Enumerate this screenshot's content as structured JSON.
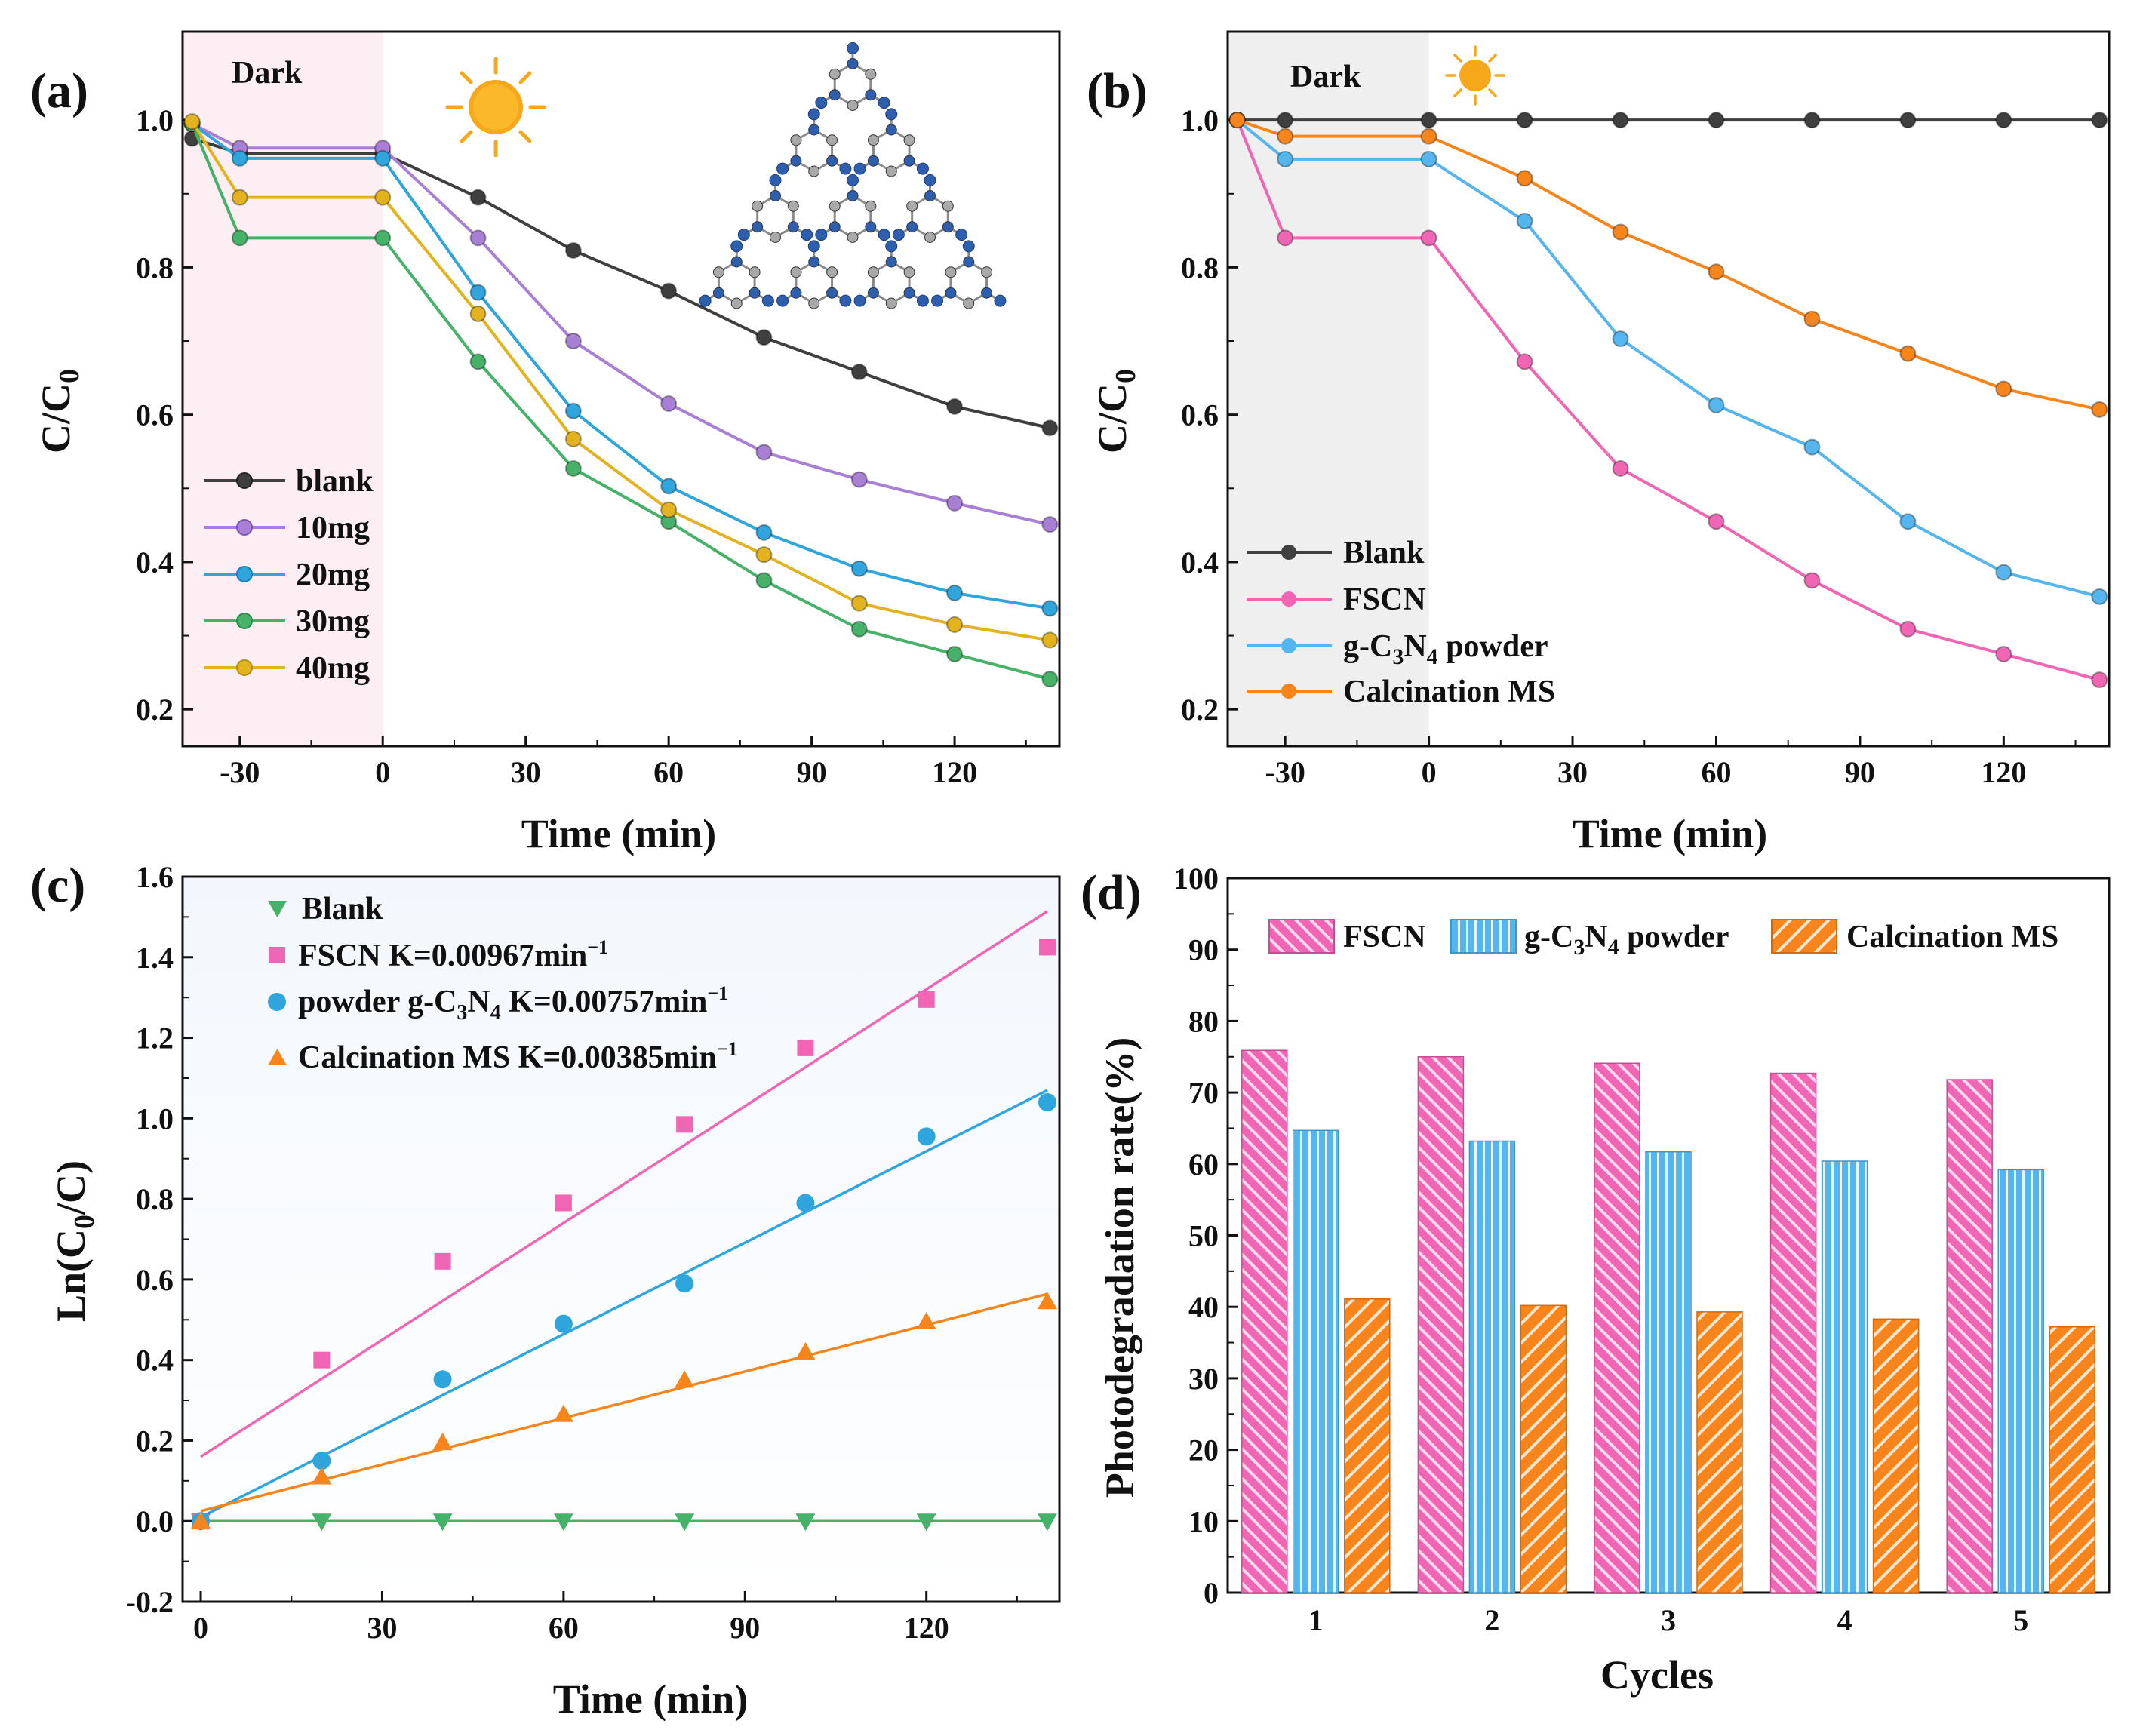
{
  "chart_data": [
    {
      "panel": "(a)",
      "type": "line",
      "xlabel": "Time (min)",
      "ylabel": "C/C0",
      "xlim": [
        -42,
        142
      ],
      "ylim": [
        0.15,
        1.12
      ],
      "xticks": [
        -30,
        0,
        30,
        60,
        90,
        120
      ],
      "yticks": [
        0.2,
        0.4,
        0.6,
        0.8,
        1.0
      ],
      "xtick_labels": [
        "-30",
        "0",
        "30",
        "60",
        "90",
        "120"
      ],
      "ytick_labels": [
        "0.2",
        "0.4",
        "0.6",
        "0.8",
        "1.0"
      ],
      "dark_region": {
        "from": -42,
        "to": 0,
        "label": "Dark",
        "color": "#fdeef3"
      },
      "x": [
        -40,
        -30,
        0,
        20,
        40,
        60,
        80,
        100,
        120,
        140
      ],
      "series": [
        {
          "name": "blank",
          "color": "#3f3f3f",
          "values": [
            0.975,
            0.955,
            0.955,
            0.895,
            0.823,
            0.768,
            0.705,
            0.658,
            0.611,
            0.582
          ]
        },
        {
          "name": "10mg",
          "color": "#a97fd6",
          "values": [
            0.995,
            0.962,
            0.962,
            0.84,
            0.7,
            0.615,
            0.549,
            0.512,
            0.48,
            0.451
          ]
        },
        {
          "name": "20mg",
          "color": "#2ea5dc",
          "values": [
            0.995,
            0.948,
            0.948,
            0.766,
            0.605,
            0.503,
            0.44,
            0.391,
            0.358,
            0.337
          ]
        },
        {
          "name": "30mg",
          "color": "#46b168",
          "values": [
            0.995,
            0.84,
            0.84,
            0.672,
            0.527,
            0.455,
            0.375,
            0.309,
            0.275,
            0.241
          ]
        },
        {
          "name": "40mg",
          "color": "#e2b31f",
          "values": [
            0.998,
            0.895,
            0.895,
            0.737,
            0.567,
            0.471,
            0.41,
            0.344,
            0.315,
            0.294
          ]
        }
      ],
      "legend": "bottom-left"
    },
    {
      "panel": "(b)",
      "type": "line",
      "xlabel": "Time (min)",
      "ylabel": "C/C0",
      "xlim": [
        -42,
        142
      ],
      "ylim": [
        0.15,
        1.12
      ],
      "xticks": [
        -30,
        0,
        30,
        60,
        90,
        120
      ],
      "yticks": [
        0.2,
        0.4,
        0.6,
        0.8,
        1.0
      ],
      "xtick_labels": [
        "-30",
        "0",
        "30",
        "60",
        "90",
        "120"
      ],
      "ytick_labels": [
        "0.2",
        "0.4",
        "0.6",
        "0.8",
        "1.0"
      ],
      "dark_region": {
        "from": -42,
        "to": 0,
        "label": "Dark",
        "color": "#efefef"
      },
      "x": [
        -40,
        -30,
        0,
        20,
        40,
        60,
        80,
        100,
        120,
        140
      ],
      "series": [
        {
          "name": "Blank",
          "color": "#3f3f3f",
          "values": [
            1.0,
            1.0,
            1.0,
            1.0,
            1.0,
            1.0,
            1.0,
            1.0,
            1.0,
            1.0
          ]
        },
        {
          "name": "FSCN",
          "color": "#f066b5",
          "values": [
            1.0,
            0.84,
            0.84,
            0.672,
            0.527,
            0.455,
            0.375,
            0.309,
            0.275,
            0.24
          ]
        },
        {
          "name": "g-C3N4 powder",
          "color": "#55b5ee",
          "values": [
            1.0,
            0.947,
            0.947,
            0.863,
            0.703,
            0.613,
            0.556,
            0.455,
            0.386,
            0.353
          ]
        },
        {
          "name": "Calcination MS",
          "color": "#f7851c",
          "values": [
            1.0,
            0.978,
            0.978,
            0.921,
            0.848,
            0.794,
            0.73,
            0.683,
            0.635,
            0.607
          ]
        }
      ],
      "legend": "bottom-left"
    },
    {
      "panel": "(c)",
      "type": "scatter",
      "xlabel": "Time (min)",
      "ylabel": "Ln(C0/C)",
      "xlim": [
        -3,
        142
      ],
      "ylim": [
        -0.2,
        1.6
      ],
      "xticks": [
        0,
        30,
        60,
        90,
        120
      ],
      "yticks": [
        -0.2,
        0.0,
        0.2,
        0.4,
        0.6,
        0.8,
        1.0,
        1.2,
        1.4,
        1.6
      ],
      "xtick_labels": [
        "0",
        "30",
        "60",
        "90",
        "120"
      ],
      "ytick_labels": [
        "-0.2",
        "0.0",
        "0.2",
        "0.4",
        "0.6",
        "0.8",
        "1.0",
        "1.2",
        "1.4",
        "1.6"
      ],
      "x": [
        0,
        20,
        40,
        60,
        80,
        100,
        120,
        140
      ],
      "series": [
        {
          "name": "Blank",
          "color": "#46b168",
          "marker": "triangle-down",
          "values": [
            0,
            0,
            0,
            0,
            0,
            0,
            0,
            0
          ],
          "fit": [
            0,
            0
          ]
        },
        {
          "name": "FSCN",
          "k_label": "K=0.00967min",
          "color": "#f066b5",
          "marker": "square",
          "values": [
            0.0,
            0.4,
            0.645,
            0.79,
            0.985,
            1.175,
            1.295,
            1.425
          ],
          "fit": [
            0.16,
            0.00967
          ]
        },
        {
          "name": "powder g-C3N4",
          "k_label": "K=0.00757min",
          "color": "#2ea5dc",
          "marker": "circle",
          "values": [
            0.0,
            0.15,
            0.352,
            0.49,
            0.59,
            0.79,
            0.955,
            1.04
          ],
          "fit": [
            0.01,
            0.00757
          ]
        },
        {
          "name": "Calcination MS",
          "k_label": "K=0.00385min",
          "color": "#f7851c",
          "marker": "triangle-up",
          "values": [
            0.0,
            0.11,
            0.195,
            0.265,
            0.35,
            0.42,
            0.495,
            0.545
          ],
          "fit": [
            0.025,
            0.00385
          ]
        }
      ],
      "legend": "top-left"
    },
    {
      "panel": "(d)",
      "type": "bar",
      "xlabel": "Cycles",
      "ylabel": "Photodegradation rate(%)",
      "ylim": [
        0,
        100
      ],
      "yticks": [
        0,
        10,
        20,
        30,
        40,
        50,
        60,
        70,
        80,
        90,
        100
      ],
      "ytick_labels": [
        "0",
        "10",
        "20",
        "30",
        "40",
        "50",
        "60",
        "70",
        "80",
        "90",
        "100"
      ],
      "categories": [
        "1",
        "2",
        "3",
        "4",
        "5"
      ],
      "series": [
        {
          "name": "FSCN",
          "color": "#f066b5",
          "values": [
            75.9,
            75.0,
            74.1,
            72.7,
            71.8
          ]
        },
        {
          "name": "g-C3N4 powder",
          "color": "#55b5ee",
          "values": [
            64.7,
            63.2,
            61.7,
            60.4,
            59.2
          ]
        },
        {
          "name": "Calcination MS",
          "color": "#f7851c",
          "values": [
            41.1,
            40.2,
            39.3,
            38.3,
            37.2
          ]
        }
      ],
      "legend": "top"
    }
  ],
  "labels": {
    "panel_a": "(a)",
    "panel_b": "(b)",
    "panel_c": "(c)",
    "panel_d": "(d)",
    "dark": "Dark",
    "time_min": "Time (min)",
    "cycles": "Cycles",
    "ylabel_ab_main": "C/C",
    "ylabel_ab_sub": "0",
    "ylabel_c_main": "Ln(C",
    "ylabel_c_sub": "0",
    "ylabel_c_end": "/C)",
    "ylabel_d": "Photodegradation rate(%)",
    "a_legend": [
      "blank",
      "10mg",
      "20mg",
      "30mg",
      "40mg"
    ],
    "b_legend_blank": "Blank",
    "b_legend_fscn": "FSCN",
    "b_legend_gcn_pre": "g-C",
    "b_legend_gcn_sub1": "3",
    "b_legend_gcn_mid": "N",
    "b_legend_gcn_sub2": "4",
    "b_legend_gcn_post": " powder",
    "b_legend_ms": "Calcination MS",
    "c_legend_blank": "Blank",
    "c_legend_fscn": "FSCN K=0.00967min",
    "c_legend_gcn_pre": "powder g-C",
    "c_legend_gcn_sub1": "3",
    "c_legend_gcn_mid": "N",
    "c_legend_gcn_sub2": "4",
    "c_legend_gcn_post": " K=0.00757min",
    "c_legend_ms": "Calcination MS K=0.00385min",
    "sup_minus1": "−1",
    "d_legend_fscn": "FSCN",
    "d_legend_gcn_pre": "g-C",
    "d_legend_gcn_sub1": "3",
    "d_legend_gcn_mid": "N",
    "d_legend_gcn_sub2": "4",
    "d_legend_gcn_post": " powder",
    "d_legend_ms": "Calcination MS"
  },
  "icons": {
    "sun": "sun-icon",
    "molecule": "g-c3n4-structure-illustration",
    "sun_color": "#f7a81a",
    "carbon_color": "#a9a9a9",
    "nitrogen_color": "#2e5fae"
  }
}
